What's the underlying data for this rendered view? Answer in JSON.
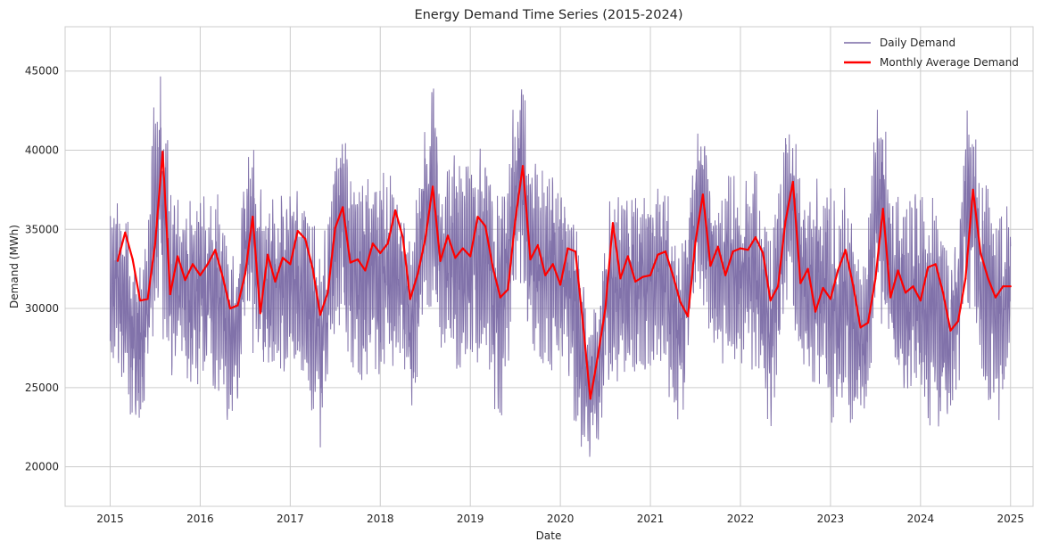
{
  "chart_data": {
    "type": "line",
    "title": "Energy Demand Time Series (2015-2024)",
    "xlabel": "Date",
    "ylabel": "Demand (MWh)",
    "xlim": [
      2014.5,
      2025.25
    ],
    "ylim": [
      17500,
      47800
    ],
    "x_ticks": [
      2015,
      2016,
      2017,
      2018,
      2019,
      2020,
      2021,
      2022,
      2023,
      2024,
      2025
    ],
    "y_ticks": [
      20000,
      25000,
      30000,
      35000,
      40000,
      45000
    ],
    "grid": true,
    "legend": "top-right",
    "series": [
      {
        "name": "Daily Demand",
        "color": "#7a6aa5",
        "style": "daily-envelope",
        "x": [
          2015.0,
          2015.083,
          2015.167,
          2015.25,
          2015.333,
          2015.417,
          2015.5,
          2015.583,
          2015.667,
          2015.75,
          2015.833,
          2015.917,
          2016.0,
          2016.083,
          2016.167,
          2016.25,
          2016.333,
          2016.417,
          2016.5,
          2016.583,
          2016.667,
          2016.75,
          2016.833,
          2016.917,
          2017.0,
          2017.083,
          2017.167,
          2017.25,
          2017.333,
          2017.417,
          2017.5,
          2017.583,
          2017.667,
          2017.75,
          2017.833,
          2017.917,
          2018.0,
          2018.083,
          2018.167,
          2018.25,
          2018.333,
          2018.417,
          2018.5,
          2018.583,
          2018.667,
          2018.75,
          2018.833,
          2018.917,
          2019.0,
          2019.083,
          2019.167,
          2019.25,
          2019.333,
          2019.417,
          2019.5,
          2019.583,
          2019.667,
          2019.75,
          2019.833,
          2019.917,
          2020.0,
          2020.083,
          2020.167,
          2020.25,
          2020.333,
          2020.417,
          2020.5,
          2020.583,
          2020.667,
          2020.75,
          2020.833,
          2020.917,
          2021.0,
          2021.083,
          2021.167,
          2021.25,
          2021.333,
          2021.417,
          2021.5,
          2021.583,
          2021.667,
          2021.75,
          2021.833,
          2021.917,
          2022.0,
          2022.083,
          2022.167,
          2022.25,
          2022.333,
          2022.417,
          2022.5,
          2022.583,
          2022.667,
          2022.75,
          2022.833,
          2022.917,
          2023.0,
          2023.083,
          2023.167,
          2023.25,
          2023.333,
          2023.417,
          2023.5,
          2023.583,
          2023.667,
          2023.75,
          2023.833,
          2023.917,
          2024.0,
          2024.083,
          2024.167,
          2024.25,
          2024.333,
          2024.417,
          2024.5,
          2024.583,
          2024.667,
          2024.75,
          2024.833,
          2024.917,
          2025.0
        ],
        "high": [
          37000,
          38000,
          37000,
          34000,
          33000,
          35000,
          45000,
          46500,
          38000,
          37000,
          37500,
          37000,
          37500,
          37500,
          38000,
          36000,
          34000,
          35000,
          40000,
          41500,
          38000,
          37000,
          38000,
          38500,
          38000,
          38000,
          38500,
          36000,
          34500,
          37000,
          40500,
          43000,
          39000,
          38000,
          39000,
          38500,
          38500,
          39000,
          39500,
          38000,
          35000,
          38000,
          42500,
          44500,
          40000,
          39000,
          40000,
          40500,
          40000,
          40000,
          41000,
          38500,
          38500,
          40000,
          44500,
          45300,
          40000,
          39000,
          39000,
          39500,
          38500,
          38000,
          37000,
          33000,
          30000,
          32000,
          36000,
          38000,
          37000,
          37500,
          38000,
          38500,
          38500,
          38500,
          39000,
          36000,
          34500,
          37000,
          41000,
          41500,
          39000,
          38500,
          39000,
          39500,
          38500,
          38500,
          39500,
          36500,
          35000,
          38000,
          42500,
          43200,
          39000,
          38000,
          38500,
          38500,
          38000,
          38000,
          38500,
          36000,
          33000,
          36000,
          43000,
          44500,
          38500,
          37500,
          37500,
          38000,
          38000,
          37500,
          37500,
          35000,
          33500,
          35500,
          42500,
          43000,
          39000,
          38000,
          37500,
          37500,
          36000
        ],
        "low": [
          24500,
          25000,
          24000,
          22000,
          22500,
          24500,
          28500,
          28000,
          26000,
          24500,
          25000,
          24500,
          25000,
          25000,
          24500,
          23000,
          21500,
          23500,
          27500,
          27000,
          25500,
          25000,
          25000,
          25500,
          25000,
          25000,
          25000,
          23000,
          21000,
          24000,
          29000,
          28500,
          26000,
          25000,
          25500,
          25500,
          25500,
          25500,
          25500,
          24000,
          22500,
          25000,
          30000,
          30000,
          27000,
          26000,
          26000,
          26000,
          26000,
          26000,
          26000,
          24000,
          21000,
          25000,
          30000,
          30000,
          27500,
          25500,
          26000,
          26000,
          25500,
          24000,
          22000,
          20000,
          19000,
          20500,
          24500,
          25500,
          25000,
          25000,
          25500,
          25500,
          25500,
          25500,
          25500,
          23000,
          21000,
          25000,
          30000,
          29500,
          27500,
          26000,
          26000,
          26500,
          26000,
          26000,
          25500,
          23000,
          22000,
          25000,
          30000,
          28500,
          26000,
          25000,
          24000,
          24500,
          21500,
          22000,
          22500,
          22000,
          22000,
          24000,
          29000,
          28500,
          25500,
          24500,
          24000,
          24500,
          21500,
          22500,
          22500,
          22000,
          22500,
          24500,
          29500,
          29500,
          25000,
          23500,
          22000,
          23000,
          24000
        ]
      },
      {
        "name": "Monthly Average Demand",
        "color": "#ff0000",
        "x": [
          2015.083,
          2015.167,
          2015.25,
          2015.333,
          2015.417,
          2015.5,
          2015.583,
          2015.667,
          2015.75,
          2015.833,
          2015.917,
          2016.0,
          2016.083,
          2016.167,
          2016.25,
          2016.333,
          2016.417,
          2016.5,
          2016.583,
          2016.667,
          2016.75,
          2016.833,
          2016.917,
          2017.0,
          2017.083,
          2017.167,
          2017.25,
          2017.333,
          2017.417,
          2017.5,
          2017.583,
          2017.667,
          2017.75,
          2017.833,
          2017.917,
          2018.0,
          2018.083,
          2018.167,
          2018.25,
          2018.333,
          2018.417,
          2018.5,
          2018.583,
          2018.667,
          2018.75,
          2018.833,
          2018.917,
          2019.0,
          2019.083,
          2019.167,
          2019.25,
          2019.333,
          2019.417,
          2019.5,
          2019.583,
          2019.667,
          2019.75,
          2019.833,
          2019.917,
          2020.0,
          2020.083,
          2020.167,
          2020.25,
          2020.333,
          2020.417,
          2020.5,
          2020.583,
          2020.667,
          2020.75,
          2020.833,
          2020.917,
          2021.0,
          2021.083,
          2021.167,
          2021.25,
          2021.333,
          2021.417,
          2021.5,
          2021.583,
          2021.667,
          2021.75,
          2021.833,
          2021.917,
          2022.0,
          2022.083,
          2022.167,
          2022.25,
          2022.333,
          2022.417,
          2022.5,
          2022.583,
          2022.667,
          2022.75,
          2022.833,
          2022.917,
          2023.0,
          2023.083,
          2023.167,
          2023.25,
          2023.333,
          2023.417,
          2023.5,
          2023.583,
          2023.667,
          2023.75,
          2023.833,
          2023.917,
          2024.0,
          2024.083,
          2024.167,
          2024.25,
          2024.333,
          2024.417,
          2024.5,
          2024.583,
          2024.667,
          2024.75,
          2024.833,
          2024.917,
          2025.0
        ],
        "values": [
          33000,
          34800,
          33100,
          30500,
          30600,
          34100,
          39900,
          30900,
          33300,
          31800,
          32800,
          32100,
          32800,
          33700,
          32000,
          30000,
          30200,
          32200,
          35800,
          29700,
          33400,
          31700,
          33200,
          32800,
          34900,
          34400,
          32500,
          29600,
          31000,
          35100,
          36400,
          32900,
          33100,
          32400,
          34100,
          33500,
          34100,
          36200,
          34500,
          30600,
          32200,
          34400,
          37700,
          33000,
          34600,
          33200,
          33800,
          33300,
          35800,
          35200,
          32600,
          30700,
          31200,
          35600,
          39000,
          33100,
          34000,
          32100,
          32800,
          31500,
          33800,
          33600,
          29100,
          24300,
          27000,
          30000,
          35400,
          31900,
          33300,
          31700,
          32000,
          32100,
          33400,
          33600,
          32100,
          30400,
          29500,
          34200,
          37200,
          32700,
          33900,
          32100,
          33600,
          33800,
          33700,
          34500,
          33500,
          30500,
          31400,
          35500,
          38000,
          31600,
          32500,
          29800,
          31300,
          30600,
          32400,
          33700,
          31500,
          28800,
          29100,
          31900,
          36300,
          30700,
          32400,
          31000,
          31400,
          30500,
          32600,
          32800,
          31000,
          28600,
          29200,
          31900,
          37500,
          33500,
          31900,
          30700,
          31400,
          31400
        ]
      }
    ]
  }
}
